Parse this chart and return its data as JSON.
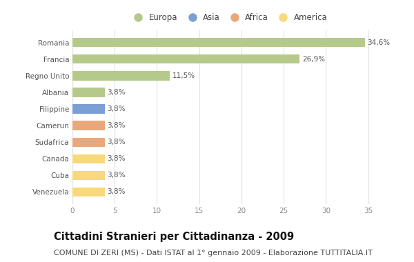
{
  "countries": [
    "Venezuela",
    "Cuba",
    "Canada",
    "Sudafrica",
    "Camerun",
    "Filippine",
    "Albania",
    "Regno Unito",
    "Francia",
    "Romania"
  ],
  "values": [
    3.8,
    3.8,
    3.8,
    3.8,
    3.8,
    3.8,
    3.8,
    11.5,
    26.9,
    34.6
  ],
  "labels": [
    "3,8%",
    "3,8%",
    "3,8%",
    "3,8%",
    "3,8%",
    "3,8%",
    "3,8%",
    "11,5%",
    "26,9%",
    "34,6%"
  ],
  "colors": [
    "#f7d97b",
    "#f7d97b",
    "#f7d97b",
    "#e8a87c",
    "#e8a87c",
    "#7b9fd4",
    "#b5c98a",
    "#b5c98a",
    "#b5c98a",
    "#b5c98a"
  ],
  "legend_labels": [
    "Europa",
    "Asia",
    "Africa",
    "America"
  ],
  "legend_colors": [
    "#b5c98a",
    "#7b9fd4",
    "#e8a87c",
    "#f7d97b"
  ],
  "xlim": [
    0,
    37
  ],
  "xticks": [
    0,
    5,
    10,
    15,
    20,
    25,
    30,
    35
  ],
  "title": "Cittadini Stranieri per Cittadinanza - 2009",
  "subtitle": "COMUNE DI ZERI (MS) - Dati ISTAT al 1° gennaio 2009 - Elaborazione TUTTITALIA.IT",
  "bg_color": "#ffffff",
  "plot_bg_color": "#ffffff",
  "bar_height": 0.55,
  "title_fontsize": 10.5,
  "subtitle_fontsize": 8,
  "label_fontsize": 7.5,
  "tick_fontsize": 7.5,
  "legend_fontsize": 8.5
}
